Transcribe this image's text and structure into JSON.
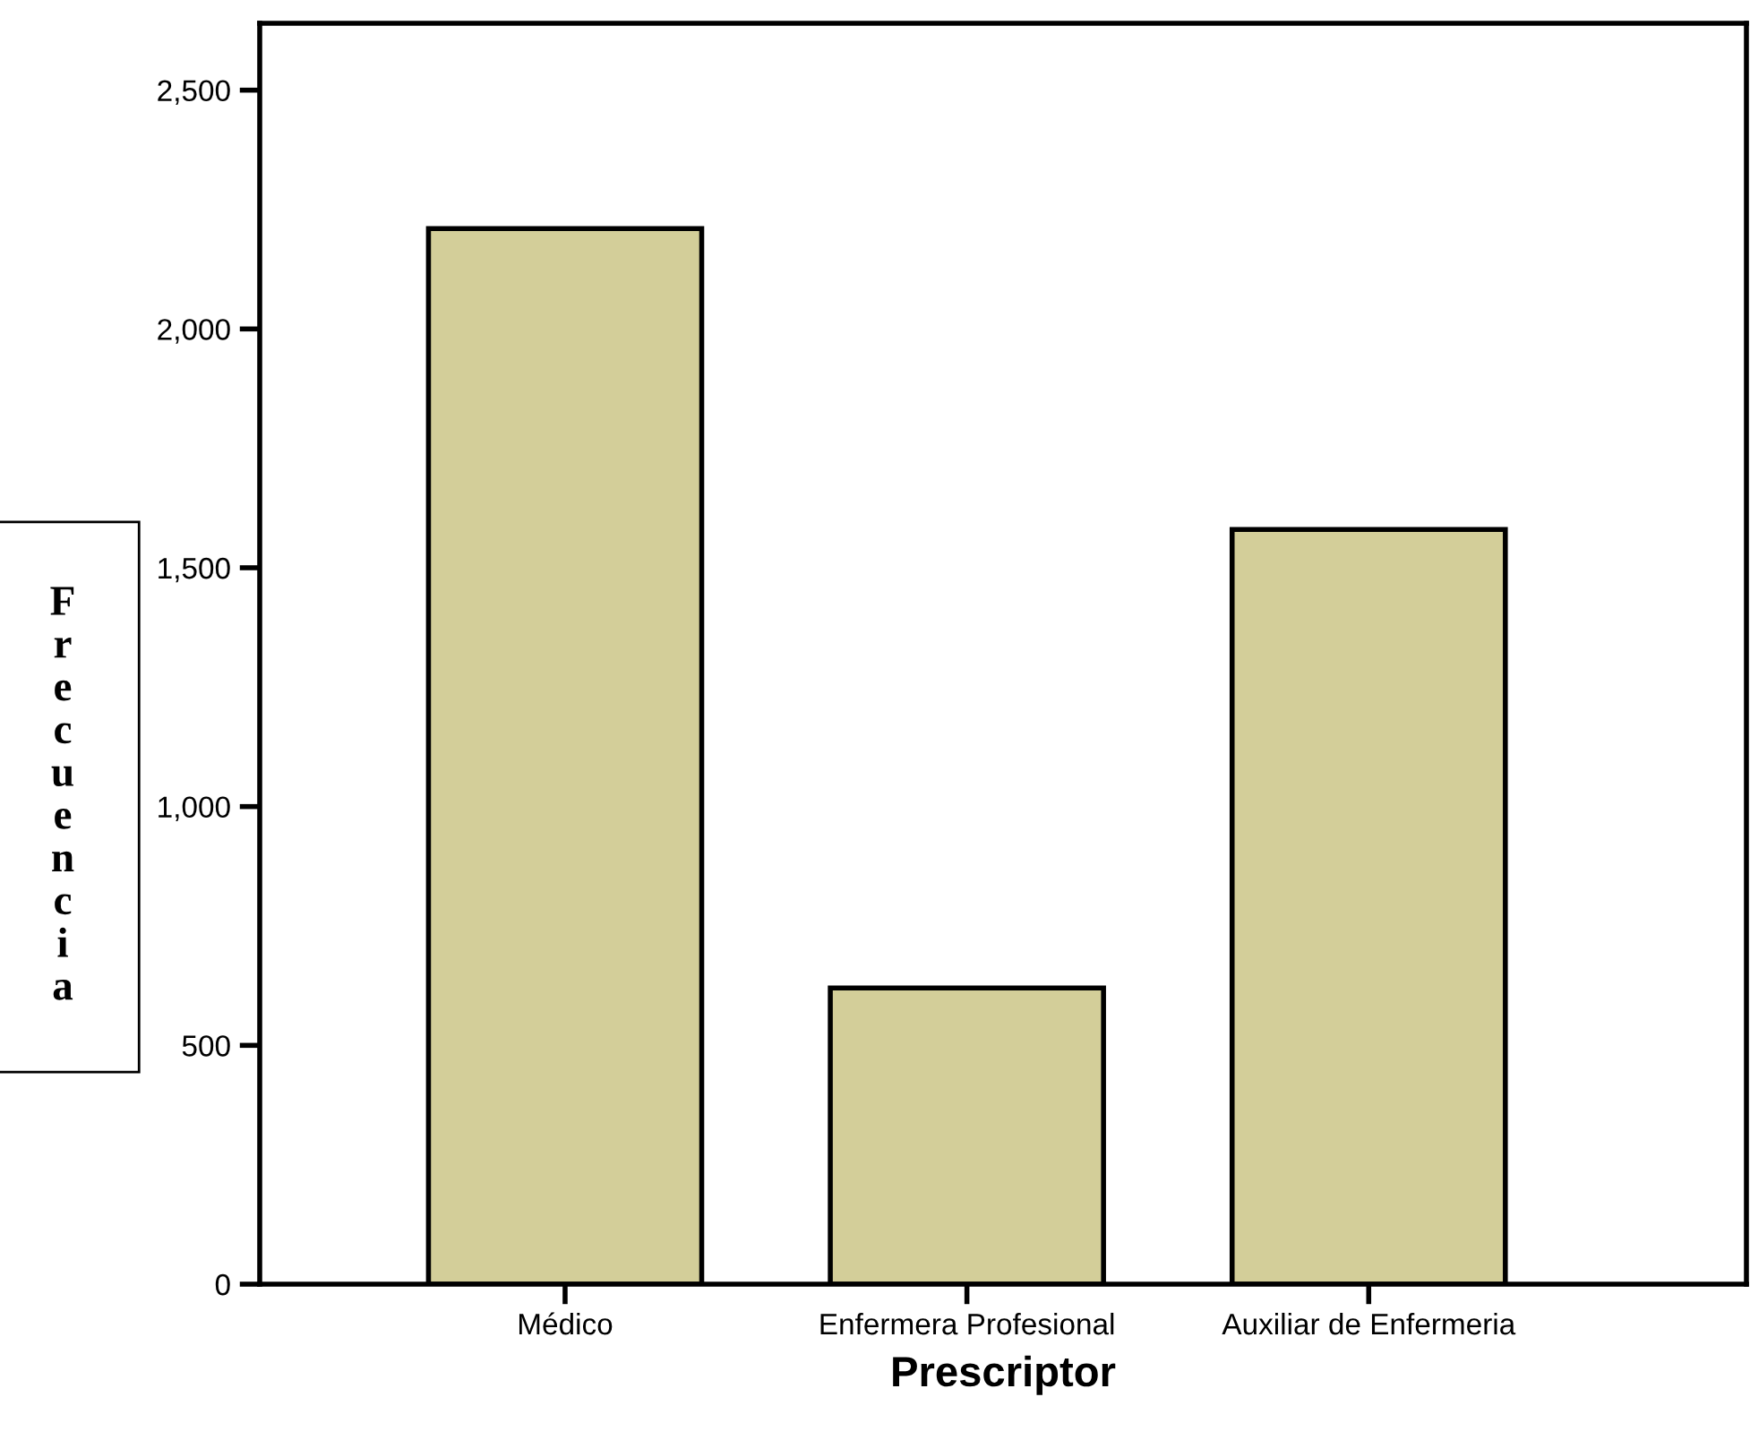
{
  "chart_data": {
    "type": "bar",
    "xlabel": "Prescriptor",
    "ylabel": "Frecuencia",
    "categories": [
      "Médico",
      "Enfermera Profesional",
      "Auxiliar de Enfermeria"
    ],
    "values": [
      2210,
      620,
      1580
    ],
    "color": "#d3ce99",
    "ylim": [
      0,
      2640
    ],
    "yticks": [
      {
        "value": 0,
        "label": "0"
      },
      {
        "value": 500,
        "label": "500"
      },
      {
        "value": 1000,
        "label": "1,000"
      },
      {
        "value": 1500,
        "label": "1,500"
      },
      {
        "value": 2000,
        "label": "2,000"
      },
      {
        "value": 2500,
        "label": "2,500"
      }
    ],
    "grid": false,
    "legend": false
  }
}
